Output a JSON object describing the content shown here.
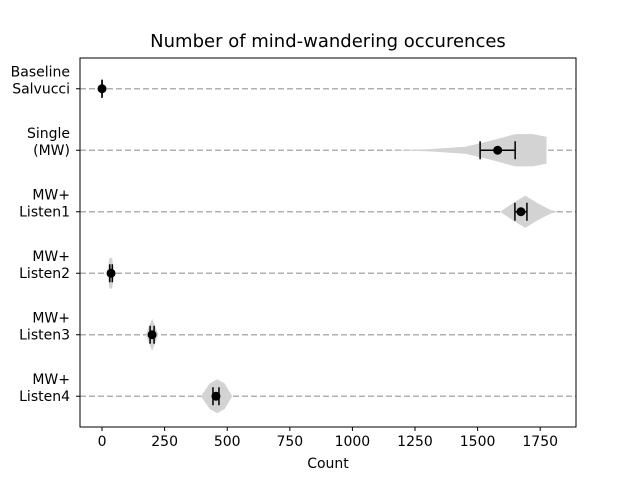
{
  "chart_data": {
    "type": "violin",
    "title": "Number of mind-wandering occurences",
    "x_label": "Count",
    "categories": [
      [
        "Baseline",
        "Salvucci"
      ],
      [
        "Single",
        "(MW)"
      ],
      [
        "MW+",
        "Listen1"
      ],
      [
        "MW+",
        "Listen2"
      ],
      [
        "MW+",
        "Listen3"
      ],
      [
        "MW+",
        "Listen4"
      ]
    ],
    "means": [
      0,
      1580,
      1673,
      36,
      200,
      455
    ],
    "errors": [
      0,
      70,
      24,
      5,
      8,
      12
    ],
    "violins": [
      {
        "x": [
          -5,
          0,
          5
        ],
        "density": [
          0,
          0.1,
          0
        ]
      },
      {
        "x": [
          1140,
          1300,
          1450,
          1550,
          1650,
          1720,
          1775
        ],
        "density": [
          0,
          0.06,
          0.2,
          0.55,
          0.95,
          0.95,
          0.8
        ]
      },
      {
        "x": [
          1590,
          1640,
          1690,
          1740,
          1790,
          1820
        ],
        "density": [
          0,
          0.5,
          0.95,
          0.5,
          0.12,
          0
        ]
      },
      {
        "x": [
          20,
          30,
          40,
          50
        ],
        "density": [
          0,
          0.9,
          0.9,
          0
        ]
      },
      {
        "x": [
          175,
          200,
          225
        ],
        "density": [
          0,
          0.95,
          0
        ]
      },
      {
        "x": [
          395,
          430,
          460,
          490,
          520
        ],
        "density": [
          0,
          0.75,
          1,
          0.75,
          0
        ]
      }
    ],
    "xlim": [
      -88,
      1893
    ],
    "xticks": [
      0,
      250,
      500,
      750,
      1000,
      1250,
      1500,
      1750
    ],
    "grid": true,
    "violin_color": "#d3d3d3",
    "mark_color": "#000000"
  }
}
